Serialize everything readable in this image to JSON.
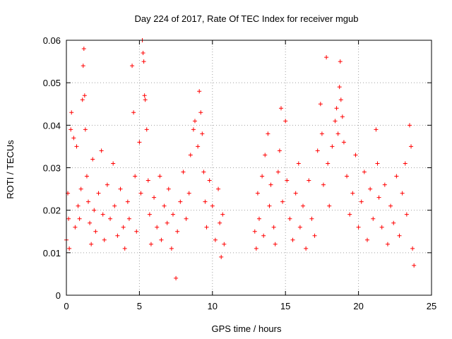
{
  "chart_data": {
    "type": "scatter",
    "title": "Day 224 of 2017, Rate Of TEC Index for receiver mgub",
    "xlabel": "GPS time / hours",
    "ylabel": "ROTI / TECUs",
    "xlim": [
      0,
      25
    ],
    "ylim": [
      0,
      0.06
    ],
    "x_ticks": [
      0,
      5,
      10,
      15,
      20,
      25
    ],
    "x_tick_labels": [
      "0",
      "5",
      "10",
      "15",
      "20",
      "25"
    ],
    "y_ticks": [
      0,
      0.01,
      0.02,
      0.03,
      0.04,
      0.05,
      0.06
    ],
    "y_tick_labels": [
      "0",
      "0.01",
      "0.02",
      "0.03",
      "0.04",
      "0.05",
      "0.06"
    ],
    "grid": true,
    "marker": "+",
    "color": "#ff0000",
    "series": [
      {
        "points": [
          [
            0.0,
            0.013
          ],
          [
            0.1,
            0.024
          ],
          [
            0.15,
            0.018
          ],
          [
            0.2,
            0.011
          ],
          [
            0.3,
            0.039
          ],
          [
            0.35,
            0.043
          ],
          [
            0.5,
            0.037
          ],
          [
            0.6,
            0.016
          ],
          [
            0.7,
            0.035
          ],
          [
            0.8,
            0.021
          ],
          [
            0.9,
            0.018
          ],
          [
            1.0,
            0.025
          ],
          [
            1.1,
            0.046
          ],
          [
            1.15,
            0.054
          ],
          [
            1.2,
            0.058
          ],
          [
            1.25,
            0.047
          ],
          [
            1.3,
            0.039
          ],
          [
            1.4,
            0.028
          ],
          [
            1.5,
            0.022
          ],
          [
            1.6,
            0.017
          ],
          [
            1.7,
            0.012
          ],
          [
            1.8,
            0.032
          ],
          [
            1.9,
            0.02
          ],
          [
            2.0,
            0.015
          ],
          [
            2.2,
            0.024
          ],
          [
            2.4,
            0.034
          ],
          [
            2.5,
            0.019
          ],
          [
            2.6,
            0.013
          ],
          [
            2.8,
            0.026
          ],
          [
            3.0,
            0.018
          ],
          [
            3.2,
            0.031
          ],
          [
            3.3,
            0.021
          ],
          [
            3.5,
            0.014
          ],
          [
            3.7,
            0.025
          ],
          [
            3.9,
            0.016
          ],
          [
            4.0,
            0.011
          ],
          [
            4.2,
            0.022
          ],
          [
            4.3,
            0.018
          ],
          [
            4.5,
            0.054
          ],
          [
            4.6,
            0.043
          ],
          [
            4.7,
            0.028
          ],
          [
            4.8,
            0.015
          ],
          [
            5.0,
            0.036
          ],
          [
            5.1,
            0.024
          ],
          [
            5.2,
            0.06
          ],
          [
            5.25,
            0.057
          ],
          [
            5.3,
            0.055
          ],
          [
            5.35,
            0.047
          ],
          [
            5.4,
            0.046
          ],
          [
            5.5,
            0.039
          ],
          [
            5.6,
            0.027
          ],
          [
            5.7,
            0.019
          ],
          [
            5.8,
            0.012
          ],
          [
            6.0,
            0.023
          ],
          [
            6.2,
            0.016
          ],
          [
            6.4,
            0.028
          ],
          [
            6.5,
            0.013
          ],
          [
            6.7,
            0.021
          ],
          [
            6.9,
            0.017
          ],
          [
            7.0,
            0.025
          ],
          [
            7.2,
            0.011
          ],
          [
            7.3,
            0.019
          ],
          [
            7.5,
            0.004
          ],
          [
            7.6,
            0.015
          ],
          [
            7.8,
            0.022
          ],
          [
            8.0,
            0.029
          ],
          [
            8.2,
            0.018
          ],
          [
            8.4,
            0.024
          ],
          [
            8.5,
            0.033
          ],
          [
            8.7,
            0.039
          ],
          [
            8.8,
            0.041
          ],
          [
            9.0,
            0.035
          ],
          [
            9.1,
            0.048
          ],
          [
            9.2,
            0.043
          ],
          [
            9.3,
            0.038
          ],
          [
            9.4,
            0.029
          ],
          [
            9.5,
            0.022
          ],
          [
            9.6,
            0.016
          ],
          [
            9.8,
            0.027
          ],
          [
            10.0,
            0.021
          ],
          [
            10.2,
            0.013
          ],
          [
            10.4,
            0.025
          ],
          [
            10.5,
            0.017
          ],
          [
            10.6,
            0.009
          ],
          [
            10.7,
            0.019
          ],
          [
            10.8,
            0.012
          ],
          [
            12.9,
            0.015
          ],
          [
            13.0,
            0.011
          ],
          [
            13.1,
            0.024
          ],
          [
            13.2,
            0.018
          ],
          [
            13.4,
            0.028
          ],
          [
            13.5,
            0.014
          ],
          [
            13.6,
            0.033
          ],
          [
            13.8,
            0.038
          ],
          [
            13.9,
            0.021
          ],
          [
            14.0,
            0.026
          ],
          [
            14.2,
            0.016
          ],
          [
            14.3,
            0.012
          ],
          [
            14.5,
            0.029
          ],
          [
            14.6,
            0.034
          ],
          [
            14.7,
            0.044
          ],
          [
            14.8,
            0.022
          ],
          [
            15.0,
            0.041
          ],
          [
            15.1,
            0.027
          ],
          [
            15.3,
            0.018
          ],
          [
            15.5,
            0.013
          ],
          [
            15.7,
            0.024
          ],
          [
            15.9,
            0.031
          ],
          [
            16.0,
            0.016
          ],
          [
            16.2,
            0.021
          ],
          [
            16.4,
            0.011
          ],
          [
            16.6,
            0.027
          ],
          [
            16.8,
            0.018
          ],
          [
            17.0,
            0.014
          ],
          [
            17.2,
            0.034
          ],
          [
            17.4,
            0.045
          ],
          [
            17.5,
            0.038
          ],
          [
            17.6,
            0.026
          ],
          [
            17.8,
            0.056
          ],
          [
            17.9,
            0.031
          ],
          [
            18.0,
            0.021
          ],
          [
            18.2,
            0.035
          ],
          [
            18.4,
            0.041
          ],
          [
            18.5,
            0.044
          ],
          [
            18.6,
            0.038
          ],
          [
            18.7,
            0.049
          ],
          [
            18.75,
            0.055
          ],
          [
            18.8,
            0.046
          ],
          [
            18.9,
            0.042
          ],
          [
            19.0,
            0.036
          ],
          [
            19.2,
            0.028
          ],
          [
            19.4,
            0.019
          ],
          [
            19.6,
            0.024
          ],
          [
            19.8,
            0.033
          ],
          [
            20.0,
            0.016
          ],
          [
            20.2,
            0.022
          ],
          [
            20.4,
            0.029
          ],
          [
            20.6,
            0.013
          ],
          [
            20.8,
            0.025
          ],
          [
            21.0,
            0.018
          ],
          [
            21.2,
            0.039
          ],
          [
            21.3,
            0.031
          ],
          [
            21.4,
            0.023
          ],
          [
            21.6,
            0.016
          ],
          [
            21.8,
            0.026
          ],
          [
            22.0,
            0.012
          ],
          [
            22.2,
            0.021
          ],
          [
            22.4,
            0.017
          ],
          [
            22.6,
            0.028
          ],
          [
            22.8,
            0.014
          ],
          [
            23.0,
            0.024
          ],
          [
            23.2,
            0.031
          ],
          [
            23.3,
            0.019
          ],
          [
            23.5,
            0.04
          ],
          [
            23.6,
            0.035
          ],
          [
            23.7,
            0.011
          ],
          [
            23.8,
            0.007
          ]
        ]
      }
    ]
  }
}
